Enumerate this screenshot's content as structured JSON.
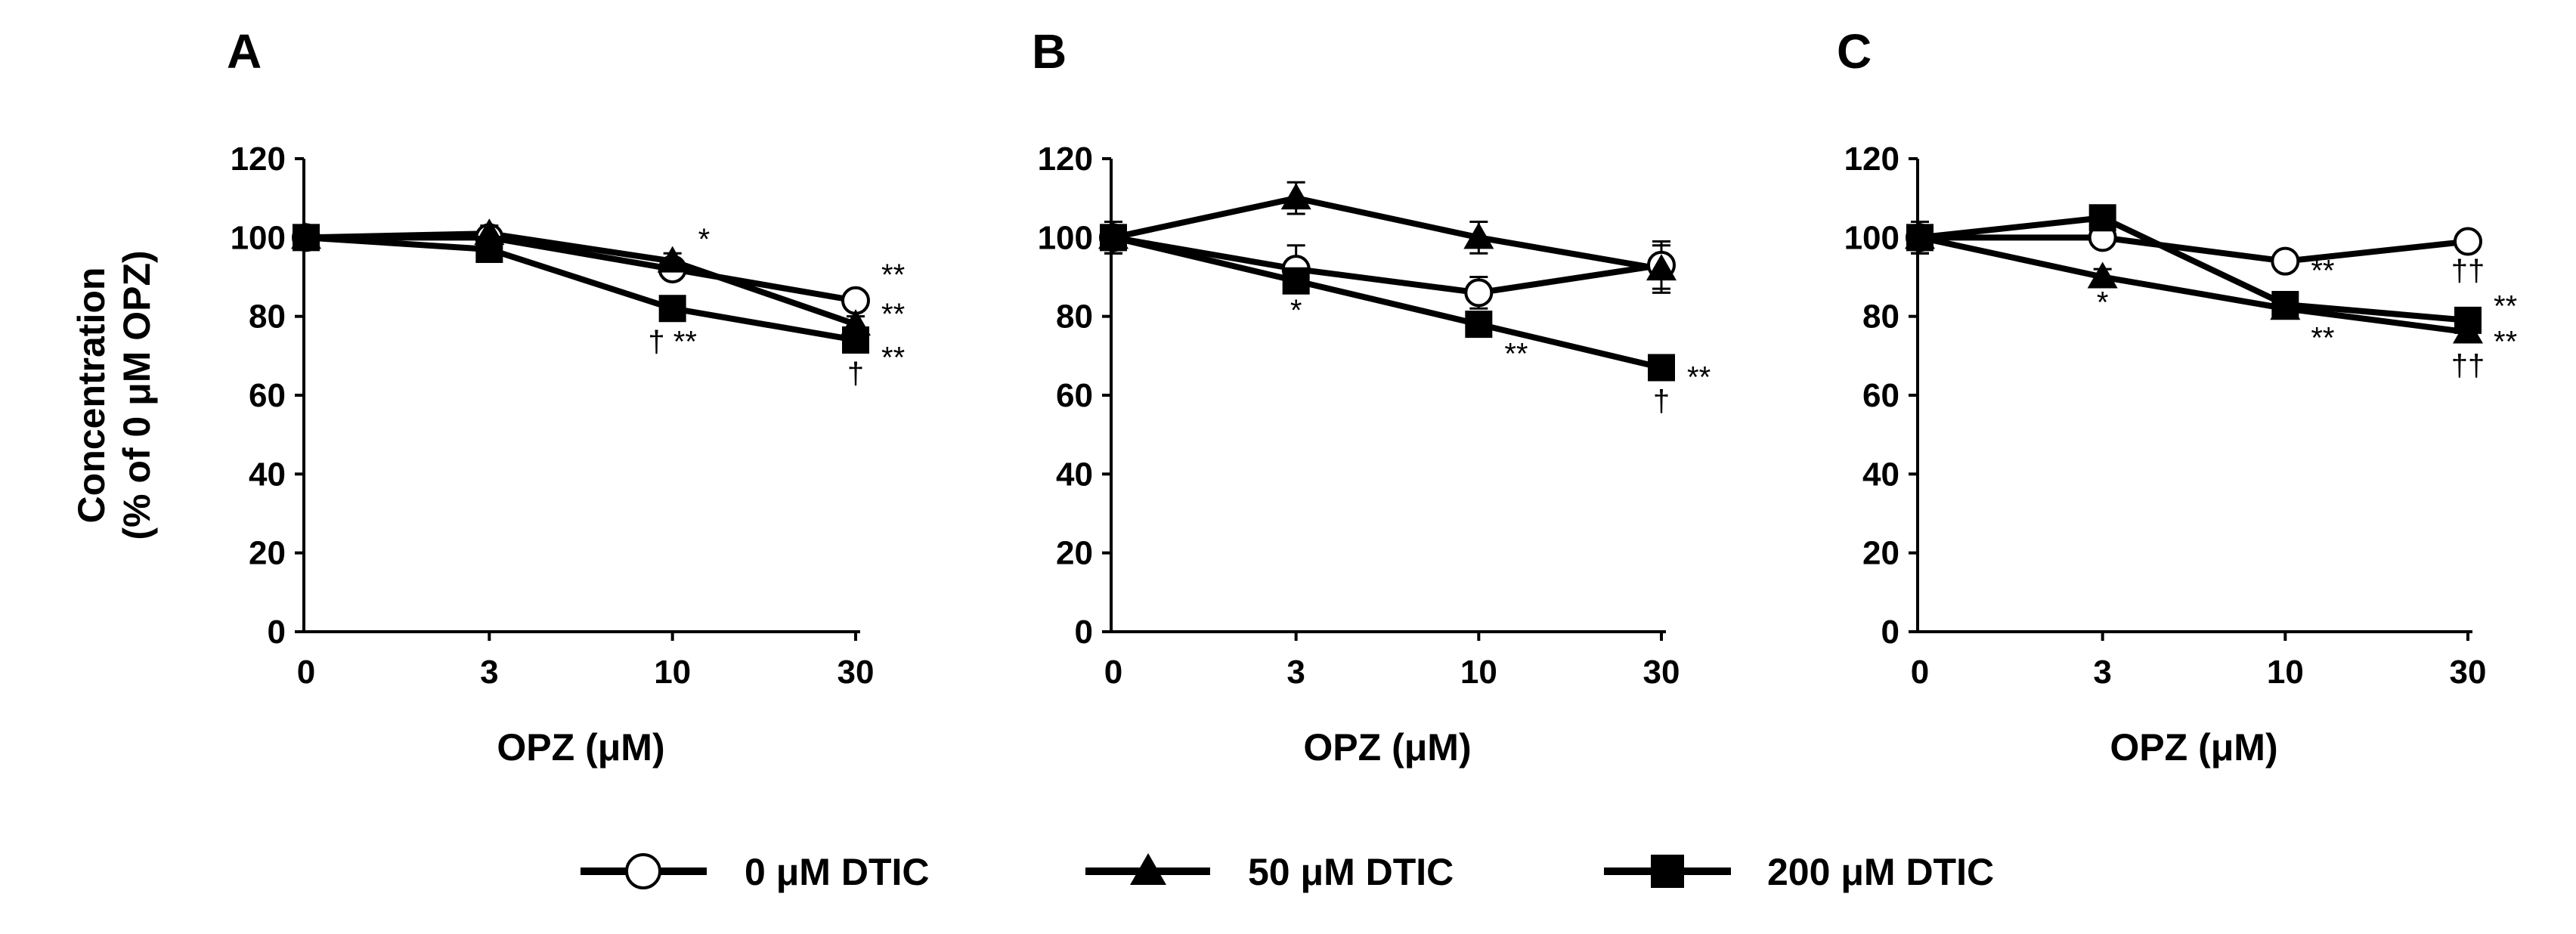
{
  "chart_data": [
    {
      "type": "line",
      "panel_label": "A",
      "categories": [
        "0",
        "3",
        "10",
        "30"
      ],
      "xlabel": "OPZ (μM)",
      "ylabel_lines": [
        "Concentration",
        "(% of 0 μM OPZ)"
      ],
      "ylim": [
        0,
        120
      ],
      "yticks": [
        "0",
        "20",
        "40",
        "60",
        "80",
        "100",
        "120"
      ],
      "series": [
        {
          "name": "0 μM DTIC",
          "marker": "circle",
          "values": [
            100,
            100,
            92,
            84
          ],
          "errors": [
            0,
            2,
            2,
            2
          ]
        },
        {
          "name": "50 μM DTIC",
          "marker": "triangle",
          "values": [
            100,
            101,
            94,
            78
          ],
          "errors": [
            0,
            2,
            2,
            2
          ]
        },
        {
          "name": "200 μM DTIC",
          "marker": "square",
          "values": [
            100,
            97,
            82,
            74
          ],
          "errors": [
            0,
            2,
            2,
            2
          ]
        }
      ],
      "annotations": [
        {
          "text": "*",
          "x": "10",
          "y": 97,
          "pos": "right"
        },
        {
          "text": "**",
          "x": "30",
          "y": 88,
          "pos": "right"
        },
        {
          "text": "**",
          "x": "30",
          "y": 78,
          "pos": "right"
        },
        {
          "text": "**",
          "x": "30",
          "y": 67,
          "pos": "right"
        },
        {
          "text": "† **",
          "x": "10",
          "y": 71,
          "pos": "center"
        },
        {
          "text": "†",
          "x": "30",
          "y": 63,
          "pos": "center"
        }
      ]
    },
    {
      "type": "line",
      "panel_label": "B",
      "categories": [
        "0",
        "3",
        "10",
        "30"
      ],
      "xlabel": "OPZ (μM)",
      "ylabel_lines": [
        "Concentration",
        "(% of 0 μM OPZ)"
      ],
      "ylim": [
        0,
        120
      ],
      "yticks": [
        "0",
        "20",
        "40",
        "60",
        "80",
        "100",
        "120"
      ],
      "series": [
        {
          "name": "0 μM DTIC",
          "marker": "circle",
          "values": [
            100,
            92,
            86,
            93
          ],
          "errors": [
            4,
            6,
            4,
            6
          ]
        },
        {
          "name": "50 μM DTIC",
          "marker": "triangle",
          "values": [
            100,
            110,
            100,
            92
          ],
          "errors": [
            4,
            4,
            4,
            6
          ]
        },
        {
          "name": "200 μM DTIC",
          "marker": "square",
          "values": [
            100,
            89,
            78,
            67
          ],
          "errors": [
            4,
            2,
            2,
            2
          ]
        }
      ],
      "annotations": [
        {
          "text": "*",
          "x": "3",
          "y": 79,
          "pos": "center"
        },
        {
          "text": "**",
          "x": "10",
          "y": 68,
          "pos": "right"
        },
        {
          "text": "**",
          "x": "30",
          "y": 62,
          "pos": "right"
        },
        {
          "text": "†",
          "x": "30",
          "y": 56,
          "pos": "center"
        }
      ]
    },
    {
      "type": "line",
      "panel_label": "C",
      "categories": [
        "0",
        "3",
        "10",
        "30"
      ],
      "xlabel": "OPZ (μM)",
      "ylabel_lines": [
        "Concentration",
        "(% of 0 μM OPZ)"
      ],
      "ylim": [
        0,
        120
      ],
      "yticks": [
        "0",
        "20",
        "40",
        "60",
        "80",
        "100",
        "120"
      ],
      "series": [
        {
          "name": "0 μM DTIC",
          "marker": "circle",
          "values": [
            100,
            100,
            94,
            99
          ],
          "errors": [
            4,
            2,
            2,
            2
          ]
        },
        {
          "name": "50 μM DTIC",
          "marker": "triangle",
          "values": [
            100,
            90,
            82,
            76
          ],
          "errors": [
            4,
            2,
            2,
            2
          ]
        },
        {
          "name": "200 μM DTIC",
          "marker": "square",
          "values": [
            100,
            105,
            83,
            79
          ],
          "errors": [
            4,
            2,
            2,
            2
          ]
        }
      ],
      "annotations": [
        {
          "text": "*",
          "x": "3",
          "y": 81,
          "pos": "center"
        },
        {
          "text": "**",
          "x": "10",
          "y": 89,
          "pos": "right"
        },
        {
          "text": "**",
          "x": "10",
          "y": 72,
          "pos": "right"
        },
        {
          "text": "††",
          "x": "30",
          "y": 89,
          "pos": "center"
        },
        {
          "text": "**",
          "x": "30",
          "y": 80,
          "pos": "right"
        },
        {
          "text": "**",
          "x": "30",
          "y": 71,
          "pos": "right"
        },
        {
          "text": "††",
          "x": "30",
          "y": 65,
          "pos": "center"
        }
      ]
    }
  ],
  "legend": [
    {
      "label": "0 μM DTIC",
      "marker": "circle"
    },
    {
      "label": "50 μM DTIC",
      "marker": "triangle"
    },
    {
      "label": "200 μM DTIC",
      "marker": "square"
    }
  ]
}
